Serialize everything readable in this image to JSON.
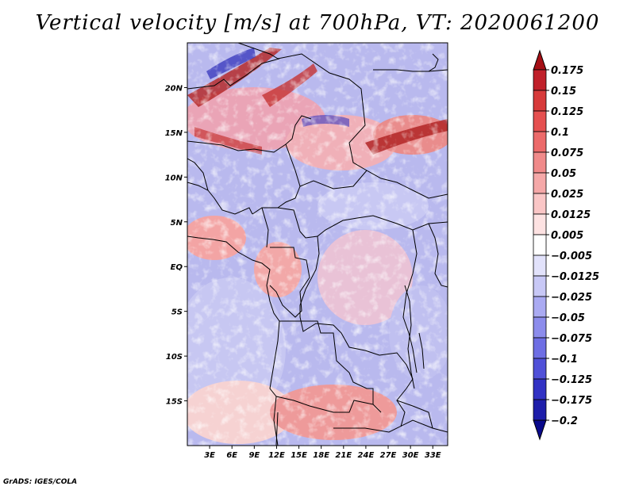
{
  "title": "Vertical velocity [m/s] at 700hPa, VT: 2020061200",
  "credit": "GrADS: IGES/COLA",
  "map": {
    "lon_range": [
      0,
      35
    ],
    "lat_range": [
      -20,
      25
    ],
    "lat_ticks": [
      {
        "value": 20,
        "label": "20N"
      },
      {
        "value": 15,
        "label": "15N"
      },
      {
        "value": 10,
        "label": "10N"
      },
      {
        "value": 5,
        "label": "5N"
      },
      {
        "value": 0,
        "label": "EQ"
      },
      {
        "value": -5,
        "label": "5S"
      },
      {
        "value": -10,
        "label": "10S"
      },
      {
        "value": -15,
        "label": "15S"
      }
    ],
    "lon_ticks": [
      {
        "value": 3,
        "label": "3E"
      },
      {
        "value": 6,
        "label": "6E"
      },
      {
        "value": 9,
        "label": "9E"
      },
      {
        "value": 12,
        "label": "12E"
      },
      {
        "value": 15,
        "label": "15E"
      },
      {
        "value": 18,
        "label": "18E"
      },
      {
        "value": 21,
        "label": "21E"
      },
      {
        "value": 24,
        "label": "24E"
      },
      {
        "value": 27,
        "label": "27E"
      },
      {
        "value": 30,
        "label": "30E"
      },
      {
        "value": 33,
        "label": "33E"
      }
    ]
  },
  "colorbar": {
    "levels": [
      "0.175",
      "0.15",
      "0.125",
      "0.1",
      "0.075",
      "0.05",
      "0.025",
      "0.0125",
      "0.005",
      "−0.005",
      "−0.0125",
      "−0.025",
      "−0.05",
      "−0.075",
      "−0.1",
      "−0.125",
      "−0.175",
      "−0.2"
    ],
    "colors": [
      "#a50f15",
      "#c0202a",
      "#d73a3a",
      "#e55050",
      "#ec6a6a",
      "#f08a8a",
      "#f5a8a8",
      "#fac6c6",
      "#fde2e2",
      "#ffffff",
      "#e2e2fb",
      "#c8c8f6",
      "#aaaaf2",
      "#8c8cec",
      "#6e6ee4",
      "#5050d8",
      "#3232c4",
      "#1e1eaa",
      "#0a0a8c"
    ]
  }
}
